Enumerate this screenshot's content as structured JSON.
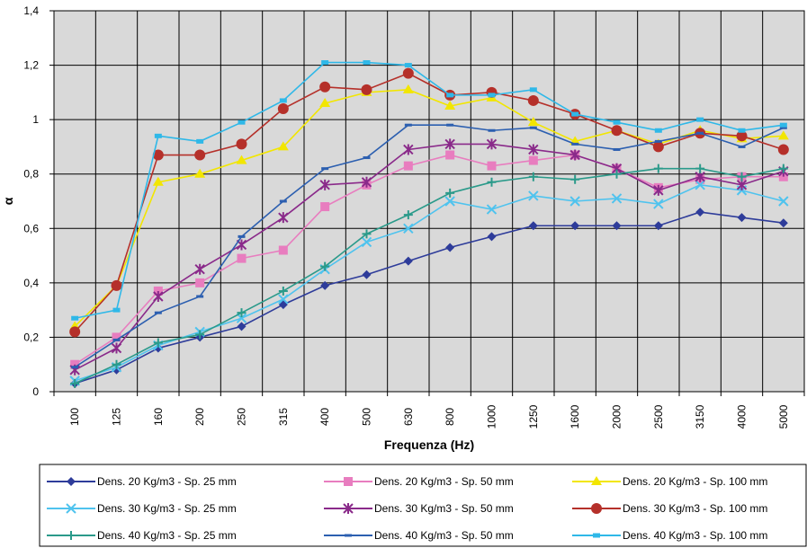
{
  "chart_data": {
    "type": "line",
    "title": "",
    "xlabel": "Frequenza (Hz)",
    "ylabel": "α",
    "ylim": [
      0,
      1.4
    ],
    "yticks": [
      "0",
      "0,2",
      "0,4",
      "0,6",
      "0,8",
      "1",
      "1,2",
      "1,4"
    ],
    "categories": [
      "100",
      "125",
      "160",
      "200",
      "250",
      "315",
      "400",
      "500",
      "630",
      "800",
      "1000",
      "1250",
      "1600",
      "2000",
      "2500",
      "3150",
      "4000",
      "5000"
    ],
    "grid": true,
    "legend_position": "bottom",
    "series": [
      {
        "name": "Dens. 20 Kg/m3 - Sp. 25 mm",
        "color": "#2e3c9a",
        "marker": "diamond",
        "values": [
          0.03,
          0.08,
          0.16,
          0.2,
          0.24,
          0.32,
          0.39,
          0.43,
          0.48,
          0.53,
          0.57,
          0.61,
          0.61,
          0.61,
          0.61,
          0.66,
          0.64,
          0.62
        ]
      },
      {
        "name": "Dens. 20 Kg/m3 - Sp. 50 mm",
        "color": "#e87dbf",
        "marker": "square",
        "values": [
          0.1,
          0.2,
          0.37,
          0.4,
          0.49,
          0.52,
          0.68,
          0.76,
          0.83,
          0.87,
          0.83,
          0.85,
          0.87,
          0.82,
          0.75,
          0.78,
          0.79,
          0.79
        ]
      },
      {
        "name": "Dens. 20 Kg/m3 - Sp. 100 mm",
        "color": "#f2e600",
        "marker": "triangle",
        "values": [
          0.24,
          0.39,
          0.77,
          0.8,
          0.85,
          0.9,
          1.06,
          1.1,
          1.11,
          1.05,
          1.08,
          0.99,
          0.92,
          0.96,
          0.91,
          0.96,
          0.93,
          0.94
        ]
      },
      {
        "name": "Dens. 30 Kg/m3 - Sp. 25 mm",
        "color": "#4fc3ee",
        "marker": "x",
        "values": [
          0.04,
          0.09,
          0.17,
          0.22,
          0.27,
          0.34,
          0.45,
          0.55,
          0.6,
          0.7,
          0.67,
          0.72,
          0.7,
          0.71,
          0.69,
          0.76,
          0.74,
          0.7
        ]
      },
      {
        "name": "Dens. 30 Kg/m3 - Sp. 50 mm",
        "color": "#8a2a8a",
        "marker": "star",
        "values": [
          0.08,
          0.16,
          0.35,
          0.45,
          0.54,
          0.64,
          0.76,
          0.77,
          0.89,
          0.91,
          0.91,
          0.89,
          0.87,
          0.82,
          0.74,
          0.79,
          0.76,
          0.81
        ]
      },
      {
        "name": "Dens. 30 Kg/m3 - Sp. 100 mm",
        "color": "#b5302a",
        "marker": "circle",
        "values": [
          0.22,
          0.39,
          0.87,
          0.87,
          0.91,
          1.04,
          1.12,
          1.11,
          1.17,
          1.09,
          1.1,
          1.07,
          1.02,
          0.96,
          0.9,
          0.95,
          0.94,
          0.89
        ]
      },
      {
        "name": "Dens. 40 Kg/m3 - Sp. 25 mm",
        "color": "#2a9a8a",
        "marker": "plus",
        "values": [
          0.03,
          0.1,
          0.18,
          0.21,
          0.29,
          0.37,
          0.46,
          0.58,
          0.65,
          0.73,
          0.77,
          0.79,
          0.78,
          0.8,
          0.82,
          0.82,
          0.79,
          0.82
        ]
      },
      {
        "name": "Dens. 40 Kg/m3 - Sp. 50 mm",
        "color": "#2c5fb0",
        "marker": "dash",
        "values": [
          0.09,
          0.19,
          0.29,
          0.35,
          0.57,
          0.7,
          0.82,
          0.86,
          0.98,
          0.98,
          0.96,
          0.97,
          0.91,
          0.89,
          0.92,
          0.95,
          0.9,
          0.97
        ]
      },
      {
        "name": "Dens. 40 Kg/m3 - Sp. 100 mm",
        "color": "#2fb8e8",
        "marker": "square-small",
        "values": [
          0.27,
          0.3,
          0.94,
          0.92,
          0.99,
          1.07,
          1.21,
          1.21,
          1.2,
          1.09,
          1.09,
          1.11,
          1.02,
          0.99,
          0.96,
          1.0,
          0.96,
          0.98
        ]
      }
    ]
  }
}
